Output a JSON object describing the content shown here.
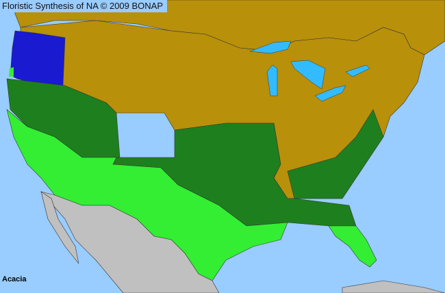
{
  "map": {
    "title": "Floristic Synthesis of NA © 2009 BONAP",
    "taxon": "Acacia",
    "colors": {
      "ocean": "#99ccff",
      "lakes": "#33bbff",
      "present_native": "#1e7f1e",
      "present_adventive": "#33ee33",
      "absent": "#b8900a",
      "noxious_or_rare": "#1a1ad0",
      "outside_region": "#c0c0c0",
      "county_border": "#333333"
    }
  }
}
